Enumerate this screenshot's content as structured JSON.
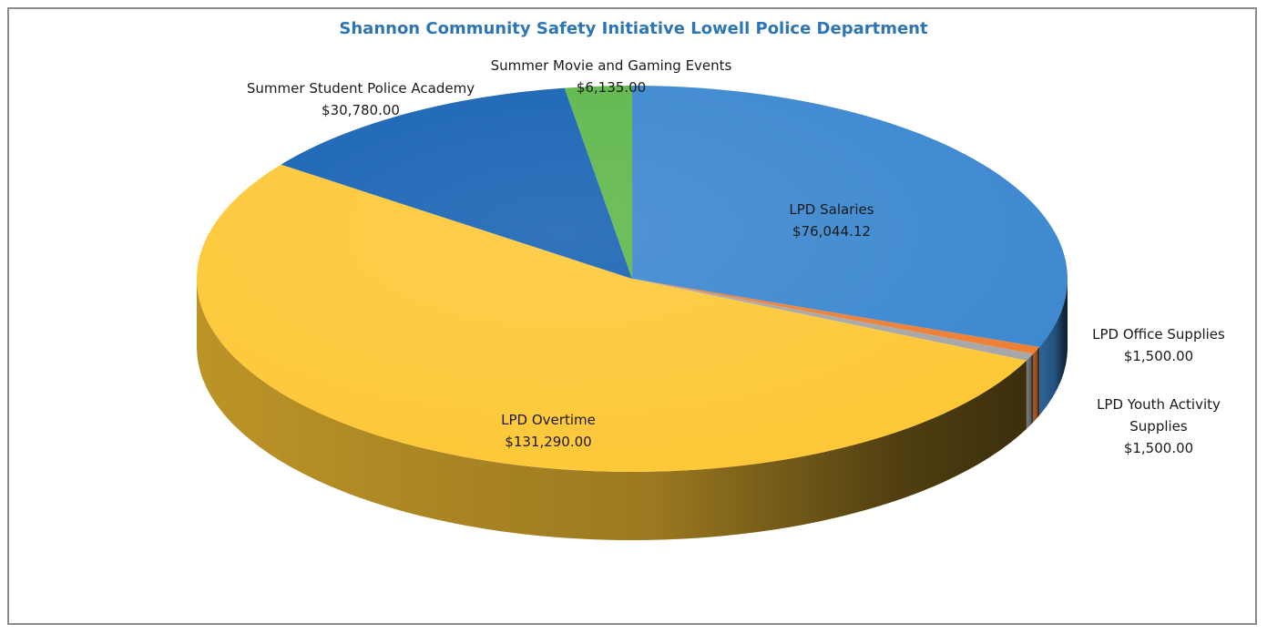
{
  "chart_data": {
    "type": "pie",
    "title": "Shannon Community Safety Initiative Lowell Police Department",
    "slices": [
      {
        "name": "LPD Salaries",
        "value_label": "$76,044.12",
        "value": 76044.12,
        "color": "#3a86cf"
      },
      {
        "name": "LPD Office Supplies",
        "value_label": "$1,500.00",
        "value": 1500.0,
        "color": "#ed7d31"
      },
      {
        "name": "LPD Youth Activity Supplies",
        "value_label": "$1,500.00",
        "value": 1500.0,
        "color": "#a5a5a5"
      },
      {
        "name": "LPD Overtime",
        "value_label": "$131,290.00",
        "value": 131290.0,
        "color": "#fec735"
      },
      {
        "name": "Summer Student Police Academy",
        "value_label": "$30,780.00",
        "value": 30780.0,
        "color": "#1561b3"
      },
      {
        "name": "Summer Movie and Gaming Events",
        "value_label": "$6,135.00",
        "value": 6135.0,
        "color": "#5db648"
      }
    ],
    "style": "3d",
    "legend": "none",
    "data_labels": "category name and value"
  }
}
